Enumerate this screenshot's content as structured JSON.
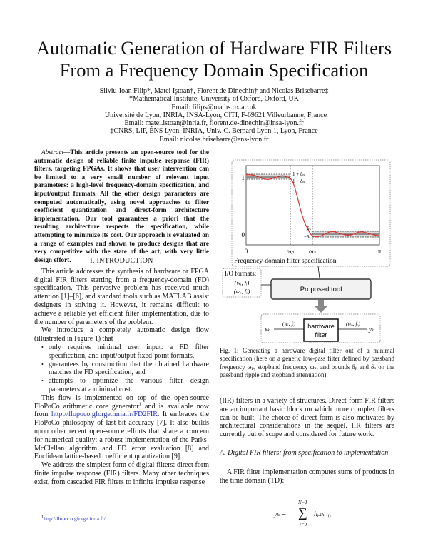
{
  "title": [
    "Automatic Generation of Hardware FIR Filters",
    "From a Frequency Domain Specification"
  ],
  "authors": {
    "names": "Silviu-Ioan Filip*, Matei Iştoan†, Florent de Dinechin† and Nicolas Brisebarre‡",
    "aff1": "*Mathematical Institute, University of Oxford, Oxford, UK",
    "email1": "Email: filips@maths.ox.ac.uk",
    "aff2": "†Université de Lyon, INRIA, INSA-Lyon, CITI, F-69621 Villeurbanne, France",
    "email2": "Email: matei.istoan@inria.fr, florent.de-dinechin@insa-lyon.fr",
    "aff3": "‡CNRS, LIP, ÉNS Lyon, INRIA, Univ. C. Bernard Lyon 1, Lyon, France",
    "email3": "Email: nicolas.brisebarre@ens-lyon.fr"
  },
  "abstract": {
    "label": "Abstract",
    "text": "—This article presents an open-source tool for the automatic design of reliable finite impulse response (FIR) filters, targeting FPGAs. It shows that user intervention can be limited to a very small number of relevant input parameters: a high-level frequency-domain specification, and input/output formats. All the other design parameters are computed automatically, using novel approaches to filter coefficient quantization and direct-form architecture implementation. Our tool guarantees a priori that the resulting architecture respects the specification, while attempting to minimize its cost. Our approach is evaluated on a range of examples and shown to produce designs that are very competitive with the state of the art, with very little design effort."
  },
  "intro": {
    "heading": "I. INTRODUCTION",
    "p1": "This article addresses the synthesis of hardware or FPGA digital FIR filters starting from a frequency-domain (FD) specification. This pervasive problem has received much attention [1]–[6], and standard tools such as MATLAB assist designers in solving it. However, it remains difficult to achieve a reliable yet efficient filter implementation, due to the number of parameters of the problem.",
    "p2": "We introduce a completely automatic design flow (illustrated in Figure 1) that",
    "bullets": [
      "only requires minimal user input: a FD filter specification, and input/output fixed-point formats,",
      "guarantees by construction that the obtained hardware matches the FD specification, and",
      "attempts to optimize the various filter design parameters at a minimal cost."
    ],
    "p3a": "This flow is implemented on top of the open-source FloPoCo arithmetic core generator",
    "p3sup": "1",
    "p3b": " and is available now from ",
    "p3link": "http://flopoco.gforge.inria.fr/FD2FIR",
    "p3c": ". It embraces the FloPoCo philosophy of last-bit accuracy [7]. It also builds upon other recent open-source efforts that share a concern for numerical quality: a robust implementation of the Parks-McClellan algorithm and FD error evaluation [8] and Euclidean lattice-based coefficient quantization [9].",
    "p4": "We address the simplest form of digital filters: direct form finite impulse response (FIR) filters. Many other techniques exist, from cascaded FIR filters to infinite impulse response"
  },
  "footnote": {
    "num": "1",
    "link": "http://flopoco.gforge.inria.fr/"
  },
  "figure": {
    "ytick_1": "1",
    "ytick_0": "0",
    "xtick_0": "0",
    "xtick_wp": "ωₚ",
    "xtick_ws": "ωₛ",
    "xtick_pi": "π",
    "upper_pass": "1 + δₚ",
    "lower_pass": "1 − δₚ",
    "upper_stop": "δₛ",
    "lower_stop": "−δₛ",
    "spec_label": "Frequency-domain filter specification",
    "io_label": "I/O formats:",
    "io_in": "(wᵢ, fᵢ)",
    "io_out": "(wₒ, fₒ)",
    "tool_label": "Proposed tool",
    "xk": "xₖ",
    "yk": "yₖ",
    "in_fmt": "(wᵢ, fᵢ)",
    "out_fmt": "(wₒ, fₒ)",
    "hw1": "hardware",
    "hw2": "filter",
    "curve_color": "#e8322b",
    "caption": "Fig. 1: Generating a hardware digital filter out of a minimal specification (here on a generic low-pass filter defined by passband frequency ωₚ, stopband frequency ωₛ, and bounds δₚ and δₛ on the passband ripple and stopband attenuation)."
  },
  "right": {
    "p1": "(IIR) filters in a variety of structures. Direct-form FIR filters are an important basic block on which more complex filters can be built. The choice of direct form is also motivated by architectural considerations in the sequel. IIR filters are currently out of scope and considered for future work.",
    "subsection": "A. Digital FIR filters: from specification to implementation",
    "p2": "A FIR filter implementation computes sums of products in the time domain (TD):",
    "eq_lhs": "yₖ =",
    "eq_top": "N−1",
    "eq_sum": "∑",
    "eq_bottom": "i=0",
    "eq_rhs": "hᵢxₖ₋ᵢ,"
  }
}
